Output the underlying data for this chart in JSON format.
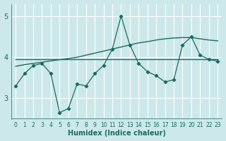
{
  "xlabel": "Humidex (Indice chaleur)",
  "bg_color": "#cce8ea",
  "grid_color": "#ffffff",
  "line_color": "#1a6b60",
  "xlim": [
    -0.5,
    23.5
  ],
  "ylim": [
    2.5,
    5.3
  ],
  "yticks": [
    3,
    4,
    5
  ],
  "xticks": [
    0,
    1,
    2,
    3,
    4,
    5,
    6,
    7,
    8,
    9,
    10,
    11,
    12,
    13,
    14,
    15,
    16,
    17,
    18,
    19,
    20,
    21,
    22,
    23
  ],
  "main_y": [
    3.3,
    3.6,
    3.8,
    3.85,
    3.6,
    2.65,
    2.75,
    3.35,
    3.3,
    3.6,
    3.8,
    4.2,
    5.0,
    4.3,
    3.85,
    3.65,
    3.55,
    3.4,
    3.45,
    4.3,
    4.5,
    4.05,
    3.95,
    3.9
  ],
  "flat_line_y": [
    3.95,
    3.95,
    3.95,
    3.95,
    3.95,
    3.95,
    3.95,
    3.95,
    3.95,
    3.95,
    3.95,
    3.95,
    3.95,
    3.95,
    3.95,
    3.95,
    3.95,
    3.95,
    3.95,
    3.95,
    3.95,
    3.95,
    3.95,
    3.95
  ],
  "rising_line_y": [
    3.78,
    3.82,
    3.85,
    3.88,
    3.91,
    3.94,
    3.97,
    4.0,
    4.05,
    4.1,
    4.15,
    4.2,
    4.25,
    4.3,
    4.35,
    4.38,
    4.42,
    4.45,
    4.47,
    4.48,
    4.48,
    4.45,
    4.42,
    4.4
  ]
}
